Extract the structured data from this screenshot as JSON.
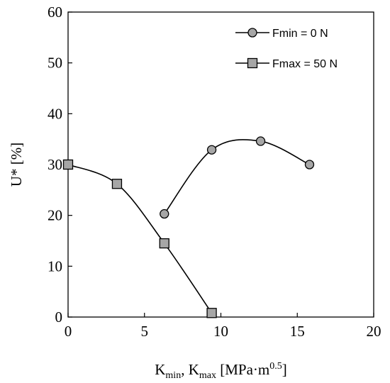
{
  "chart_data": {
    "type": "line",
    "title": "",
    "xlabel": {
      "parts": [
        {
          "text": "K",
          "style": "normal"
        },
        {
          "text": "min",
          "style": "sub"
        },
        {
          "text": ", K",
          "style": "normal"
        },
        {
          "text": "max",
          "style": "sub"
        },
        {
          "text": " [MPa·m",
          "style": "normal"
        },
        {
          "text": "0.5",
          "style": "sup"
        },
        {
          "text": "]",
          "style": "normal"
        }
      ]
    },
    "ylabel": "U* [%]",
    "xlim": [
      0,
      20
    ],
    "ylim": [
      0,
      60
    ],
    "xticks": [
      "0",
      "5",
      "10",
      "15",
      "20"
    ],
    "yticks": [
      "0",
      "10",
      "20",
      "30",
      "40",
      "50",
      "60"
    ],
    "xtick_values": [
      0,
      5,
      10,
      15,
      20
    ],
    "ytick_values": [
      0,
      10,
      20,
      30,
      40,
      50,
      60
    ],
    "grid": false,
    "legend_position": "top-right",
    "series": [
      {
        "name": "Fmin = 0 N",
        "marker": "circle",
        "color": "#a6a6a6",
        "line_color": "#000000",
        "smooth": true,
        "x": [
          6.3,
          9.4,
          12.6,
          15.8
        ],
        "y": [
          20.3,
          32.9,
          34.6,
          30.0
        ]
      },
      {
        "name": "Fmax = 50 N",
        "marker": "square",
        "color": "#a6a6a6",
        "line_color": "#000000",
        "smooth": true,
        "x": [
          0.0,
          3.2,
          6.3,
          9.4
        ],
        "y": [
          30.0,
          26.2,
          14.5,
          0.8
        ]
      }
    ]
  }
}
